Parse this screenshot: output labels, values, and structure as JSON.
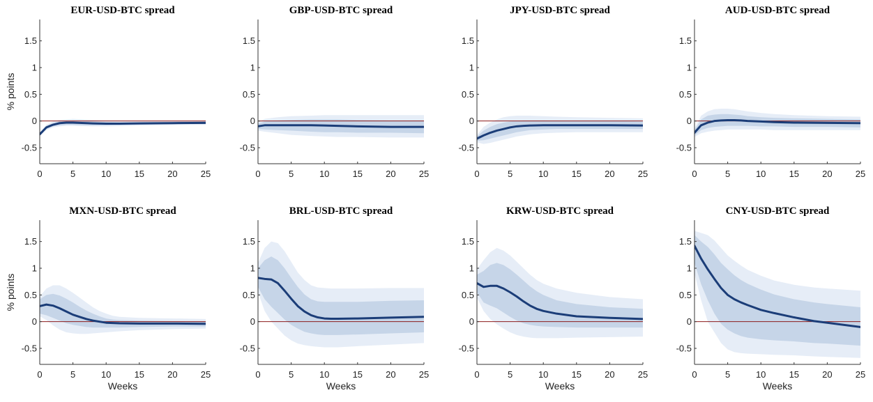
{
  "chart_data": [
    {
      "type": "line",
      "title": "EUR-USD-BTC spread",
      "xlabel": "",
      "ylabel": "% points",
      "xlim": [
        0,
        25
      ],
      "ylim": [
        -0.8,
        1.9
      ],
      "xticks": [
        "0",
        "5",
        "10",
        "15",
        "20",
        "25"
      ],
      "yticks": [
        "-0.5",
        "0",
        "0.5",
        "1",
        "1.5"
      ],
      "x": [
        0,
        1,
        2,
        3,
        4,
        5,
        6,
        8,
        10,
        12,
        15,
        20,
        25
      ],
      "series": [
        {
          "values": [
            -0.25,
            -0.12,
            -0.07,
            -0.04,
            -0.03,
            -0.03,
            -0.035,
            -0.045,
            -0.05,
            -0.05,
            -0.045,
            -0.04,
            -0.035
          ]
        }
      ],
      "band68": {
        "lower": [
          -0.27,
          -0.15,
          -0.1,
          -0.08,
          -0.07,
          -0.07,
          -0.075,
          -0.08,
          -0.08,
          -0.075,
          -0.07,
          -0.06,
          -0.055
        ],
        "upper": [
          -0.22,
          -0.09,
          -0.04,
          -0.01,
          0.0,
          0.01,
          0.005,
          -0.01,
          -0.02,
          -0.025,
          -0.02,
          -0.015,
          -0.01
        ]
      },
      "band90": {
        "lower": [
          -0.28,
          -0.17,
          -0.12,
          -0.1,
          -0.09,
          -0.09,
          -0.095,
          -0.1,
          -0.1,
          -0.095,
          -0.085,
          -0.075,
          -0.07
        ],
        "upper": [
          -0.21,
          -0.07,
          -0.01,
          0.02,
          0.03,
          0.04,
          0.035,
          0.02,
          0.005,
          -0.005,
          -0.005,
          0.0,
          0.005
        ]
      }
    },
    {
      "type": "line",
      "title": "GBP-USD-BTC spread",
      "xlabel": "",
      "ylabel": "",
      "xlim": [
        0,
        25
      ],
      "ylim": [
        -0.8,
        1.9
      ],
      "xticks": [
        "0",
        "5",
        "10",
        "15",
        "20",
        "25"
      ],
      "yticks": [
        "-0.5",
        "0",
        "0.5",
        "1",
        "1.5"
      ],
      "x": [
        0,
        1,
        3,
        5,
        8,
        10,
        12,
        15,
        20,
        25
      ],
      "series": [
        {
          "values": [
            -0.1,
            -0.08,
            -0.08,
            -0.08,
            -0.08,
            -0.085,
            -0.09,
            -0.1,
            -0.11,
            -0.11
          ]
        }
      ],
      "band68": {
        "lower": [
          -0.15,
          -0.16,
          -0.17,
          -0.18,
          -0.2,
          -0.21,
          -0.21,
          -0.22,
          -0.22,
          -0.23
        ],
        "upper": [
          -0.05,
          -0.01,
          0.01,
          0.02,
          0.03,
          0.03,
          0.03,
          0.02,
          0.01,
          0.01
        ]
      },
      "band90": {
        "lower": [
          -0.18,
          -0.2,
          -0.23,
          -0.26,
          -0.28,
          -0.29,
          -0.3,
          -0.3,
          -0.31,
          -0.31
        ],
        "upper": [
          -0.02,
          0.04,
          0.07,
          0.09,
          0.1,
          0.11,
          0.11,
          0.11,
          0.11,
          0.11
        ]
      }
    },
    {
      "type": "line",
      "title": "JPY-USD-BTC spread",
      "xlabel": "",
      "ylabel": "",
      "xlim": [
        0,
        25
      ],
      "ylim": [
        -0.8,
        1.9
      ],
      "xticks": [
        "0",
        "5",
        "10",
        "15",
        "20",
        "25"
      ],
      "yticks": [
        "-0.5",
        "0",
        "0.5",
        "1",
        "1.5"
      ],
      "x": [
        0,
        1,
        2,
        3,
        4,
        5,
        6,
        7,
        8,
        10,
        12,
        15,
        20,
        25
      ],
      "series": [
        {
          "values": [
            -0.33,
            -0.27,
            -0.22,
            -0.18,
            -0.15,
            -0.12,
            -0.1,
            -0.09,
            -0.085,
            -0.08,
            -0.08,
            -0.08,
            -0.08,
            -0.085
          ]
        }
      ],
      "band68": {
        "lower": [
          -0.37,
          -0.36,
          -0.33,
          -0.3,
          -0.27,
          -0.24,
          -0.21,
          -0.19,
          -0.17,
          -0.16,
          -0.15,
          -0.15,
          -0.15,
          -0.15
        ],
        "upper": [
          -0.29,
          -0.18,
          -0.11,
          -0.06,
          -0.03,
          -0.01,
          0.0,
          0.01,
          0.01,
          0.01,
          0.005,
          0.0,
          0.0,
          -0.01
        ]
      },
      "band90": {
        "lower": [
          -0.4,
          -0.43,
          -0.41,
          -0.38,
          -0.35,
          -0.32,
          -0.29,
          -0.27,
          -0.25,
          -0.23,
          -0.22,
          -0.21,
          -0.21,
          -0.21
        ],
        "upper": [
          -0.26,
          -0.11,
          -0.03,
          0.03,
          0.07,
          0.09,
          0.1,
          0.1,
          0.1,
          0.09,
          0.08,
          0.07,
          0.06,
          0.05
        ]
      }
    },
    {
      "type": "line",
      "title": "AUD-USD-BTC spread",
      "xlabel": "",
      "ylabel": "",
      "xlim": [
        0,
        25
      ],
      "ylim": [
        -0.8,
        1.9
      ],
      "xticks": [
        "0",
        "5",
        "10",
        "15",
        "20",
        "25"
      ],
      "yticks": [
        "-0.5",
        "0",
        "0.5",
        "1",
        "1.5"
      ],
      "x": [
        0,
        1,
        2,
        3,
        4,
        5,
        6,
        7,
        8,
        10,
        12,
        15,
        20,
        25
      ],
      "series": [
        {
          "values": [
            -0.22,
            -0.08,
            -0.03,
            0.0,
            0.01,
            0.015,
            0.015,
            0.01,
            0.0,
            -0.01,
            -0.02,
            -0.03,
            -0.035,
            -0.04
          ]
        }
      ],
      "band68": {
        "lower": [
          -0.27,
          -0.17,
          -0.13,
          -0.11,
          -0.1,
          -0.09,
          -0.09,
          -0.09,
          -0.09,
          -0.1,
          -0.1,
          -0.11,
          -0.11,
          -0.12
        ],
        "upper": [
          -0.17,
          0.03,
          0.1,
          0.12,
          0.13,
          0.13,
          0.12,
          0.11,
          0.09,
          0.07,
          0.06,
          0.05,
          0.04,
          0.03
        ]
      },
      "band90": {
        "lower": [
          -0.3,
          -0.23,
          -0.2,
          -0.18,
          -0.17,
          -0.16,
          -0.16,
          -0.16,
          -0.16,
          -0.16,
          -0.17,
          -0.17,
          -0.17,
          -0.17
        ],
        "upper": [
          -0.14,
          0.1,
          0.18,
          0.22,
          0.23,
          0.23,
          0.22,
          0.2,
          0.18,
          0.15,
          0.13,
          0.11,
          0.09,
          0.08
        ]
      }
    },
    {
      "type": "line",
      "title": "MXN-USD-BTC spread",
      "xlabel": "Weeks",
      "ylabel": "% points",
      "xlim": [
        0,
        25
      ],
      "ylim": [
        -0.8,
        1.9
      ],
      "xticks": [
        "0",
        "5",
        "10",
        "15",
        "20",
        "25"
      ],
      "yticks": [
        "-0.5",
        "0",
        "0.5",
        "1",
        "1.5"
      ],
      "x": [
        0,
        1,
        2,
        3,
        4,
        5,
        6,
        7,
        8,
        9,
        10,
        11,
        12,
        15,
        20,
        25
      ],
      "series": [
        {
          "values": [
            0.29,
            0.32,
            0.3,
            0.25,
            0.19,
            0.13,
            0.09,
            0.05,
            0.02,
            0.0,
            -0.02,
            -0.025,
            -0.03,
            -0.035,
            -0.035,
            -0.04
          ]
        }
      ],
      "band68": {
        "lower": [
          0.15,
          0.12,
          0.07,
          0.02,
          -0.03,
          -0.06,
          -0.08,
          -0.1,
          -0.11,
          -0.11,
          -0.11,
          -0.11,
          -0.11,
          -0.1,
          -0.09,
          -0.09
        ],
        "upper": [
          0.42,
          0.5,
          0.52,
          0.49,
          0.43,
          0.36,
          0.28,
          0.21,
          0.15,
          0.1,
          0.06,
          0.04,
          0.03,
          0.02,
          0.01,
          0.01
        ]
      },
      "band90": {
        "lower": [
          0.1,
          0.03,
          -0.07,
          -0.15,
          -0.2,
          -0.22,
          -0.23,
          -0.23,
          -0.22,
          -0.21,
          -0.2,
          -0.19,
          -0.18,
          -0.16,
          -0.14,
          -0.13
        ],
        "upper": [
          0.47,
          0.62,
          0.68,
          0.68,
          0.62,
          0.54,
          0.45,
          0.36,
          0.27,
          0.2,
          0.15,
          0.11,
          0.09,
          0.07,
          0.06,
          0.05
        ]
      }
    },
    {
      "type": "line",
      "title": "BRL-USD-BTC spread",
      "xlabel": "Weeks",
      "ylabel": "",
      "xlim": [
        0,
        25
      ],
      "ylim": [
        -0.8,
        1.9
      ],
      "xticks": [
        "0",
        "5",
        "10",
        "15",
        "20",
        "25"
      ],
      "yticks": [
        "-0.5",
        "0",
        "0.5",
        "1",
        "1.5"
      ],
      "x": [
        0,
        1,
        2,
        3,
        4,
        5,
        6,
        7,
        8,
        9,
        10,
        11,
        12,
        15,
        20,
        25
      ],
      "series": [
        {
          "values": [
            0.82,
            0.8,
            0.79,
            0.72,
            0.58,
            0.43,
            0.29,
            0.19,
            0.12,
            0.08,
            0.06,
            0.055,
            0.055,
            0.06,
            0.075,
            0.09
          ]
        }
      ],
      "band68": {
        "lower": [
          0.65,
          0.42,
          0.28,
          0.16,
          0.04,
          -0.06,
          -0.13,
          -0.19,
          -0.22,
          -0.24,
          -0.25,
          -0.25,
          -0.25,
          -0.24,
          -0.22,
          -0.2
        ],
        "upper": [
          1.0,
          1.15,
          1.22,
          1.15,
          1.0,
          0.82,
          0.65,
          0.51,
          0.42,
          0.38,
          0.37,
          0.37,
          0.37,
          0.37,
          0.39,
          0.4
        ]
      },
      "band90": {
        "lower": [
          0.55,
          0.2,
          0.0,
          -0.13,
          -0.26,
          -0.35,
          -0.41,
          -0.44,
          -0.46,
          -0.47,
          -0.48,
          -0.48,
          -0.48,
          -0.46,
          -0.43,
          -0.4
        ],
        "upper": [
          1.1,
          1.38,
          1.5,
          1.47,
          1.32,
          1.12,
          0.92,
          0.78,
          0.68,
          0.64,
          0.63,
          0.62,
          0.62,
          0.62,
          0.63,
          0.63
        ]
      }
    },
    {
      "type": "line",
      "title": "KRW-USD-BTC spread",
      "xlabel": "Weeks",
      "ylabel": "",
      "xlim": [
        0,
        25
      ],
      "ylim": [
        -0.8,
        1.9
      ],
      "xticks": [
        "0",
        "5",
        "10",
        "15",
        "20",
        "25"
      ],
      "yticks": [
        "-0.5",
        "0",
        "0.5",
        "1",
        "1.5"
      ],
      "x": [
        0,
        1,
        2,
        3,
        4,
        5,
        6,
        7,
        8,
        9,
        10,
        12,
        15,
        20,
        25
      ],
      "series": [
        {
          "values": [
            0.72,
            0.65,
            0.67,
            0.67,
            0.62,
            0.55,
            0.47,
            0.38,
            0.3,
            0.24,
            0.2,
            0.15,
            0.1,
            0.07,
            0.05
          ]
        }
      ],
      "band68": {
        "lower": [
          0.55,
          0.36,
          0.3,
          0.25,
          0.17,
          0.09,
          0.02,
          -0.03,
          -0.06,
          -0.08,
          -0.09,
          -0.1,
          -0.11,
          -0.11,
          -0.11
        ],
        "upper": [
          0.88,
          0.95,
          1.06,
          1.1,
          1.06,
          0.98,
          0.88,
          0.77,
          0.66,
          0.57,
          0.5,
          0.4,
          0.33,
          0.27,
          0.24
        ]
      },
      "band90": {
        "lower": [
          0.45,
          0.2,
          0.05,
          -0.05,
          -0.13,
          -0.2,
          -0.25,
          -0.28,
          -0.3,
          -0.31,
          -0.31,
          -0.31,
          -0.3,
          -0.29,
          -0.28
        ],
        "upper": [
          0.98,
          1.15,
          1.3,
          1.38,
          1.33,
          1.24,
          1.12,
          1.0,
          0.88,
          0.78,
          0.71,
          0.62,
          0.54,
          0.46,
          0.42
        ]
      }
    },
    {
      "type": "line",
      "title": "CNY-USD-BTC spread",
      "xlabel": "Weeks",
      "ylabel": "",
      "xlim": [
        0,
        25
      ],
      "ylim": [
        -0.8,
        1.9
      ],
      "xticks": [
        "0",
        "5",
        "10",
        "15",
        "20",
        "25"
      ],
      "yticks": [
        "-0.5",
        "0",
        "0.5",
        "1",
        "1.5"
      ],
      "x": [
        0,
        1,
        2,
        3,
        4,
        5,
        6,
        7,
        8,
        10,
        12,
        15,
        18,
        20,
        25
      ],
      "series": [
        {
          "values": [
            1.42,
            1.18,
            0.98,
            0.8,
            0.63,
            0.5,
            0.42,
            0.36,
            0.31,
            0.22,
            0.16,
            0.08,
            0.01,
            -0.02,
            -0.1
          ]
        }
      ],
      "band68": {
        "lower": [
          1.1,
          0.7,
          0.4,
          0.15,
          -0.04,
          -0.15,
          -0.22,
          -0.27,
          -0.3,
          -0.33,
          -0.35,
          -0.37,
          -0.4,
          -0.41,
          -0.45
        ],
        "upper": [
          1.62,
          1.5,
          1.4,
          1.26,
          1.1,
          0.98,
          0.87,
          0.78,
          0.71,
          0.6,
          0.51,
          0.42,
          0.36,
          0.33,
          0.27
        ]
      },
      "band90": {
        "lower": [
          0.9,
          0.4,
          0.0,
          -0.2,
          -0.4,
          -0.52,
          -0.57,
          -0.59,
          -0.6,
          -0.61,
          -0.62,
          -0.63,
          -0.65,
          -0.66,
          -0.68
        ],
        "upper": [
          1.7,
          1.66,
          1.62,
          1.52,
          1.38,
          1.24,
          1.14,
          1.05,
          0.97,
          0.86,
          0.77,
          0.69,
          0.64,
          0.62,
          0.58
        ]
      }
    }
  ],
  "colors": {
    "irf_line": "#1b3d78",
    "band68": "#c6d5e8",
    "band90": "#e6edf7",
    "zero_line": "#8b1a1a",
    "axis": "#333333"
  }
}
